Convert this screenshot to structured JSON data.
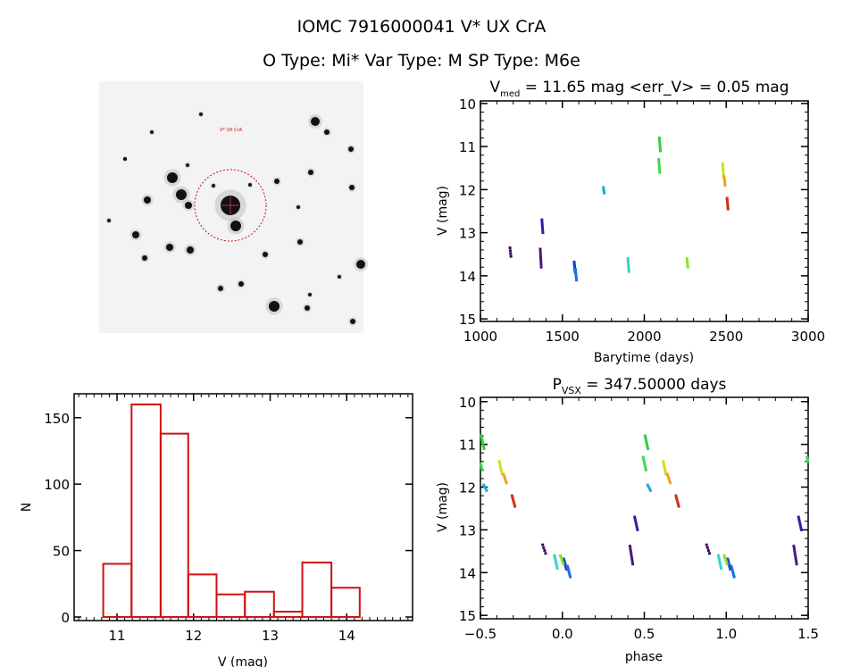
{
  "header": {
    "line1": "IOMC 7916000041   V* UX CrA",
    "line2": "O Type: Mi*  Var Type: M  SP Type: M6e"
  },
  "chart_data": [
    {
      "id": "finder_image",
      "type": "image",
      "description_label": "V* UX CrA"
    },
    {
      "id": "light_curve",
      "type": "scatter",
      "title_main": "V",
      "title_sub": "med",
      "title_rest": " = 11.65 mag <err_V> = 0.05 mag",
      "xlabel": "Barytime (days)",
      "ylabel": "V (mag)",
      "xlim": [
        1000,
        3000
      ],
      "ylim": [
        10,
        15
      ],
      "y_inverted": true,
      "xticks": [
        "1000",
        "1500",
        "2000",
        "2500",
        "3000"
      ],
      "yticks": [
        "10",
        "11",
        "12",
        "13",
        "14",
        "15"
      ],
      "clusters": [
        {
          "t": 1180,
          "mag": [
            13.35,
            13.55
          ],
          "n": 4,
          "color": "#3a0a5a"
        },
        {
          "t": 1365,
          "mag": [
            13.38,
            13.8
          ],
          "n": 8,
          "color": "#4a1080"
        },
        {
          "t": 1375,
          "mag": [
            12.7,
            13.0
          ],
          "n": 7,
          "color": "#3a1aa0"
        },
        {
          "t": 1572,
          "mag": [
            13.68,
            13.92
          ],
          "n": 9,
          "color": "#1a40d0"
        },
        {
          "t": 1580,
          "mag": [
            13.85,
            14.1
          ],
          "n": 7,
          "color": "#2070e0"
        },
        {
          "t": 1750,
          "mag": [
            11.95,
            12.08
          ],
          "n": 4,
          "color": "#20a8e0"
        },
        {
          "t": 1900,
          "mag": [
            13.6,
            13.9
          ],
          "n": 7,
          "color": "#30d8c8"
        },
        {
          "t": 2092,
          "mag": [
            10.8,
            11.1
          ],
          "n": 7,
          "color": "#30d040"
        },
        {
          "t": 2088,
          "mag": [
            11.3,
            11.6
          ],
          "n": 7,
          "color": "#40d850"
        },
        {
          "t": 2260,
          "mag": [
            13.6,
            13.8
          ],
          "n": 5,
          "color": "#90e030"
        },
        {
          "t": 2478,
          "mag": [
            11.4,
            11.7
          ],
          "n": 8,
          "color": "#d0e020"
        },
        {
          "t": 2487,
          "mag": [
            11.7,
            11.9
          ],
          "n": 5,
          "color": "#f0a020"
        },
        {
          "t": 2505,
          "mag": [
            12.2,
            12.45
          ],
          "n": 6,
          "color": "#d03010"
        }
      ]
    },
    {
      "id": "histogram",
      "type": "bar",
      "xlabel": "V (mag)",
      "ylabel": "N",
      "xlim": [
        10.44,
        14.86
      ],
      "ylim": [
        0,
        168
      ],
      "xticks": [
        "11",
        "12",
        "13",
        "14"
      ],
      "yticks": [
        "0",
        "50",
        "100",
        "150"
      ],
      "bin_edges": [
        10.82,
        11.19,
        11.57,
        11.93,
        12.3,
        12.67,
        13.05,
        13.42,
        13.8,
        14.17
      ],
      "values": [
        40,
        160,
        138,
        32,
        17,
        19,
        4,
        41,
        22
      ],
      "color": "#d01010"
    },
    {
      "id": "phased_curve",
      "type": "scatter",
      "title_main": "P",
      "title_sub": "VSX",
      "title_rest": " = 347.50000 days",
      "period": 347.5,
      "xlabel": "phase",
      "ylabel": "V (mag)",
      "xlim": [
        -0.5,
        1.5
      ],
      "ylim": [
        10,
        15
      ],
      "y_inverted": true,
      "xticks": [
        "−0.5",
        "0.0",
        "0.5",
        "1.0",
        "1.5"
      ],
      "yticks": [
        "10",
        "11",
        "12",
        "13",
        "14",
        "15"
      ]
    }
  ]
}
